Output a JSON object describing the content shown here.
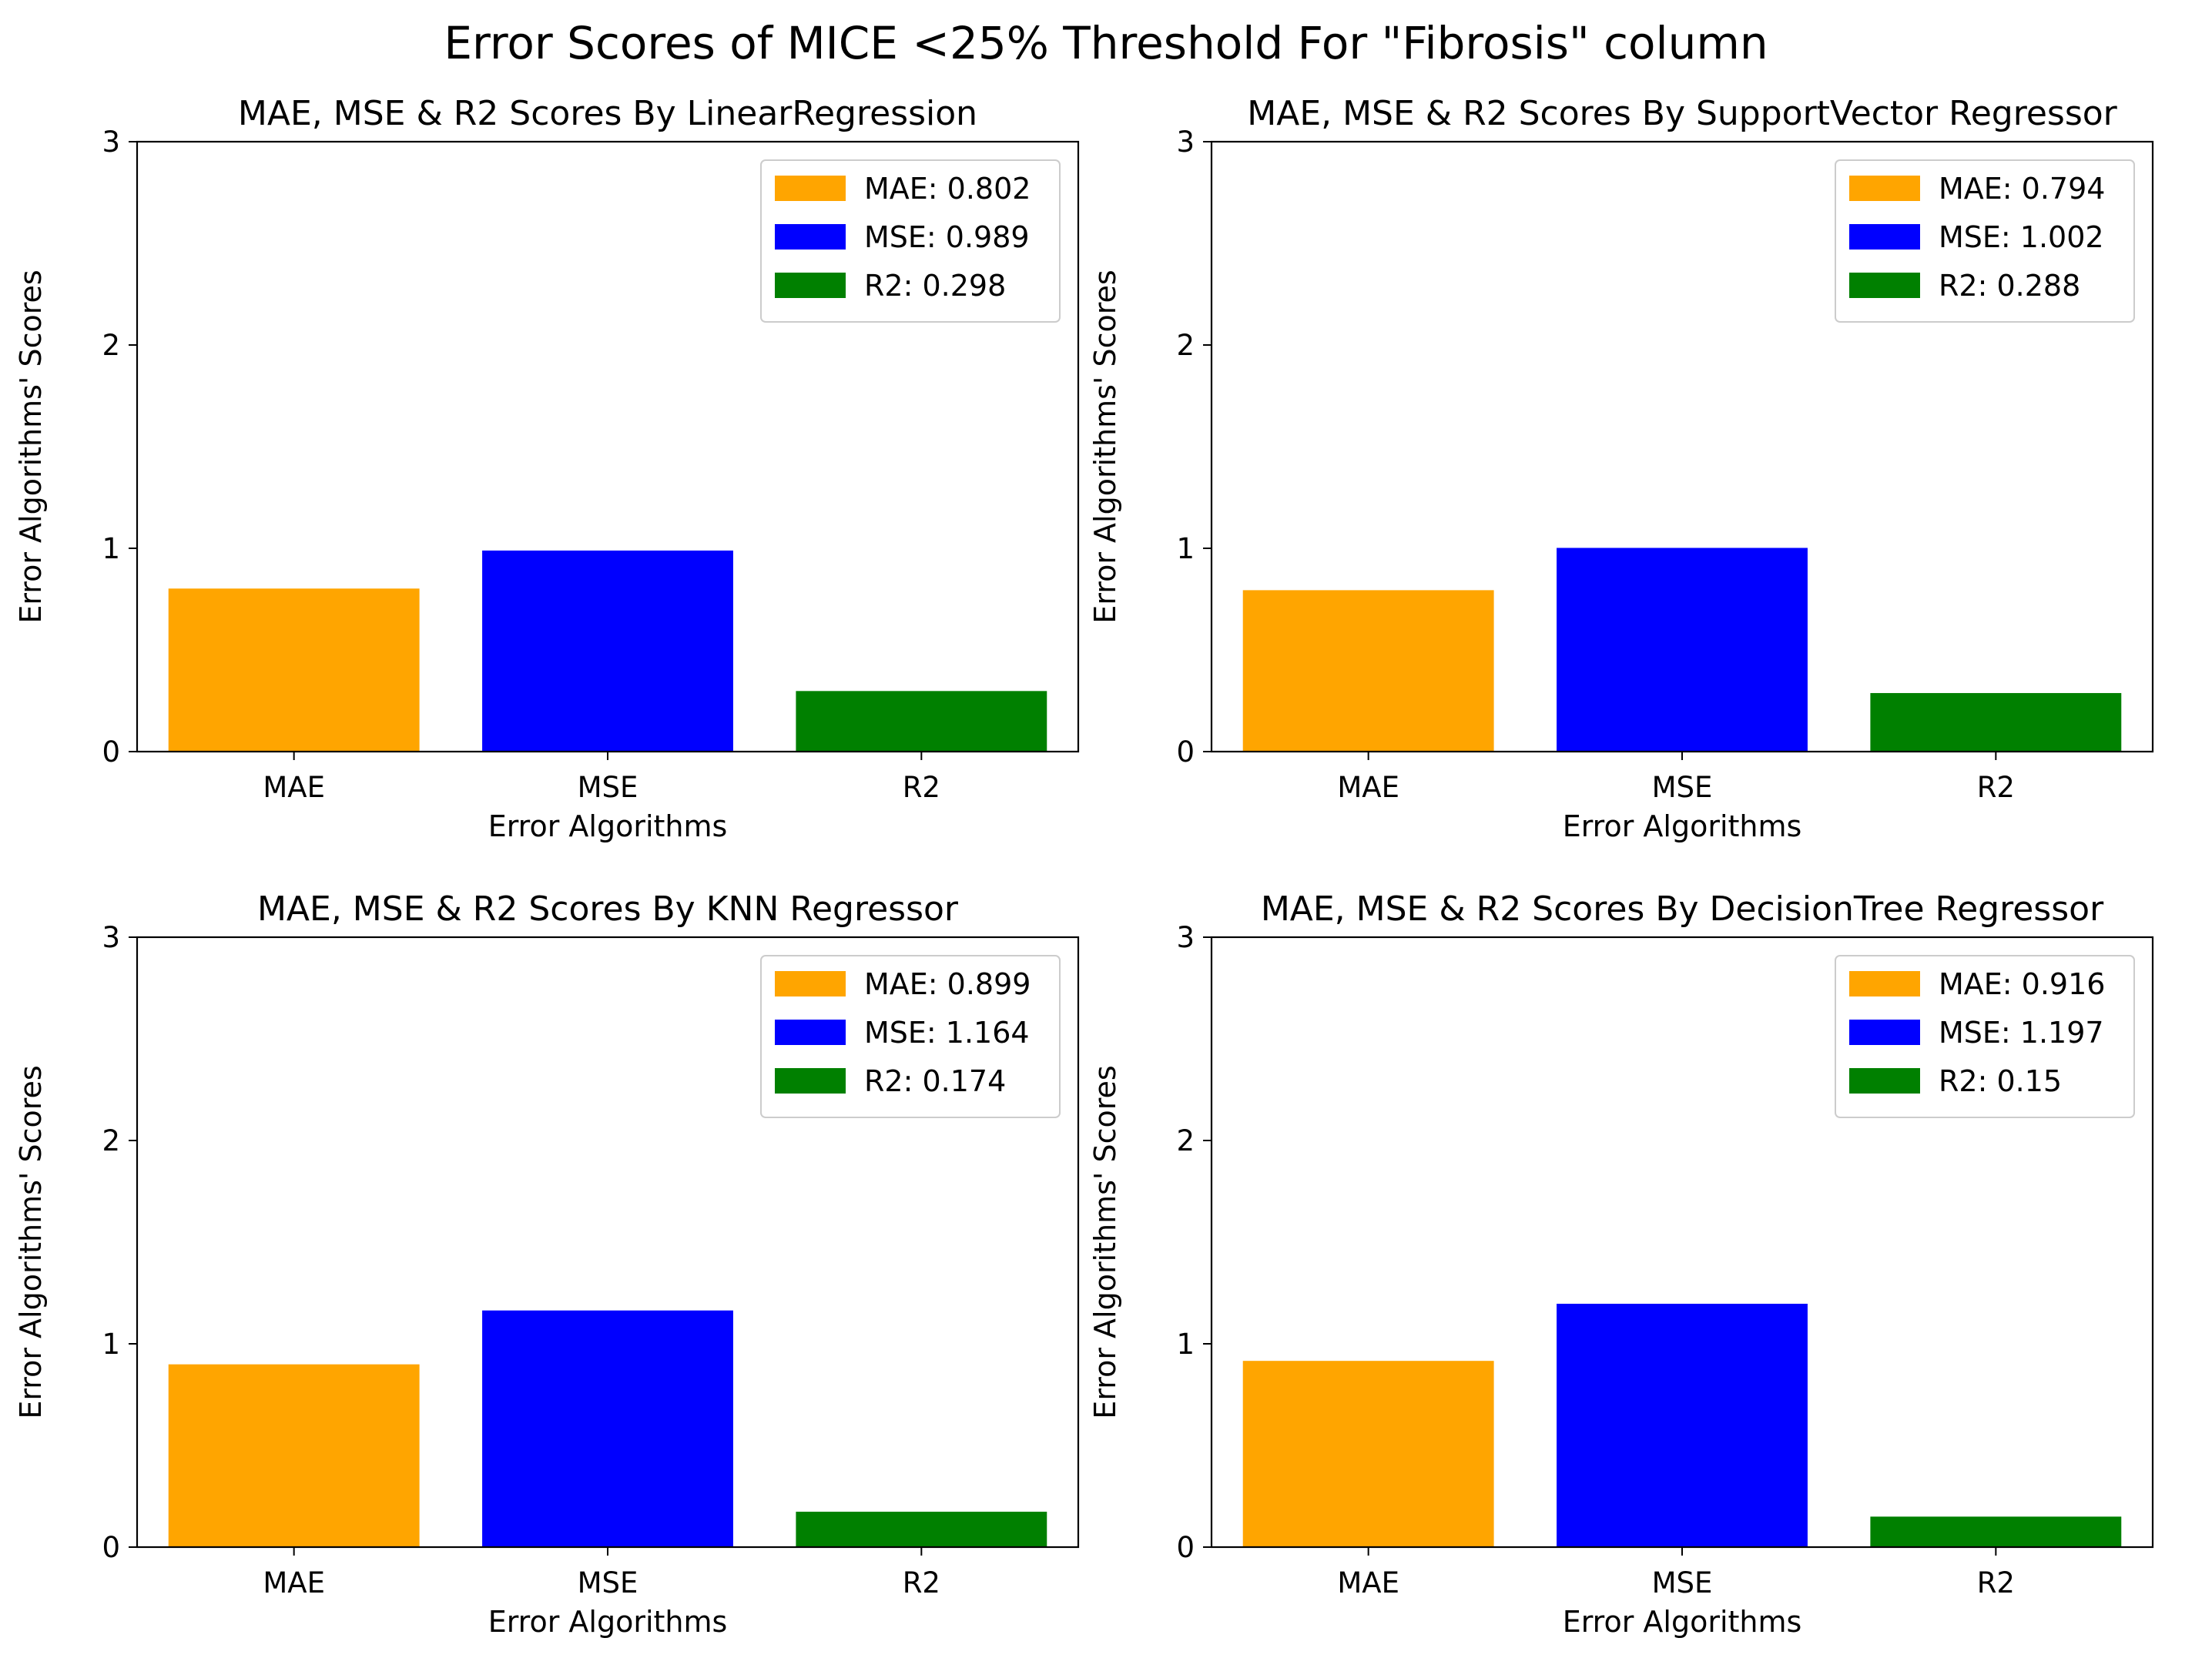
{
  "figure": {
    "title": "Error Scores of MICE <25% Threshold For \"Fibrosis\" column"
  },
  "colors": {
    "MAE": "#ffa500",
    "MSE": "#0000ff",
    "R2": "#008000"
  },
  "chart_data": [
    {
      "type": "bar",
      "title": "MAE, MSE & R2 Scores By LinearRegression",
      "xlabel": "Error Algorithms",
      "ylabel": "Error Algorithms' Scores",
      "categories": [
        "MAE",
        "MSE",
        "R2"
      ],
      "values": [
        0.802,
        0.989,
        0.298
      ],
      "legend": [
        "MAE: 0.802",
        "MSE: 0.989",
        "R2: 0.298"
      ],
      "legend_position": "top-right",
      "ylim": [
        0,
        3
      ],
      "yticks": [
        "0",
        "1",
        "2",
        "3"
      ],
      "grid": false
    },
    {
      "type": "bar",
      "title": "MAE, MSE & R2 Scores By SupportVector Regressor",
      "xlabel": "Error Algorithms",
      "ylabel": "Error Algorithms' Scores",
      "categories": [
        "MAE",
        "MSE",
        "R2"
      ],
      "values": [
        0.794,
        1.002,
        0.288
      ],
      "legend": [
        "MAE: 0.794",
        "MSE: 1.002",
        "R2: 0.288"
      ],
      "legend_position": "top-right",
      "ylim": [
        0,
        3
      ],
      "yticks": [
        "0",
        "1",
        "2",
        "3"
      ],
      "grid": false
    },
    {
      "type": "bar",
      "title": "MAE, MSE & R2 Scores By KNN Regressor",
      "xlabel": "Error Algorithms",
      "ylabel": "Error Algorithms' Scores",
      "categories": [
        "MAE",
        "MSE",
        "R2"
      ],
      "values": [
        0.899,
        1.164,
        0.174
      ],
      "legend": [
        "MAE: 0.899",
        "MSE: 1.164",
        "R2: 0.174"
      ],
      "legend_position": "top-right",
      "ylim": [
        0,
        3
      ],
      "yticks": [
        "0",
        "1",
        "2",
        "3"
      ],
      "grid": false
    },
    {
      "type": "bar",
      "title": "MAE, MSE & R2 Scores By DecisionTree Regressor",
      "xlabel": "Error Algorithms",
      "ylabel": "Error Algorithms' Scores",
      "categories": [
        "MAE",
        "MSE",
        "R2"
      ],
      "values": [
        0.916,
        1.197,
        0.15
      ],
      "legend": [
        "MAE: 0.916",
        "MSE: 1.197",
        "R2: 0.15"
      ],
      "legend_position": "top-right",
      "ylim": [
        0,
        3
      ],
      "yticks": [
        "0",
        "1",
        "2",
        "3"
      ],
      "grid": false
    }
  ]
}
